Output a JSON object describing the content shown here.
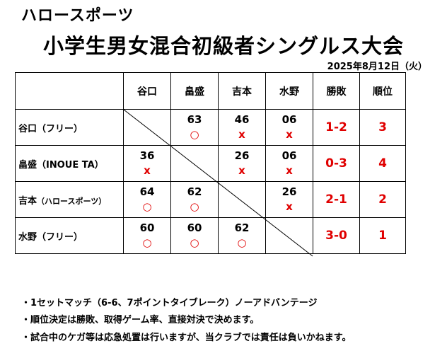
{
  "header": {
    "org": "ハロースポーツ",
    "title": "小学生男女混合初級者シングルス大会",
    "date": "2025年8月12日（火）"
  },
  "table": {
    "columns": [
      "谷口",
      "畠盛",
      "吉本",
      "水野",
      "勝敗",
      "順位"
    ],
    "rows": [
      {
        "name": "谷口（フリー）",
        "name_small": "",
        "scores": [
          null,
          {
            "val": "63",
            "mark": "○"
          },
          {
            "val": "46",
            "mark": "x"
          },
          {
            "val": "06",
            "mark": "x"
          }
        ],
        "record": "1-2",
        "rank": "3"
      },
      {
        "name": "畠盛（INOUE TA）",
        "name_small": "",
        "scores": [
          {
            "val": "36",
            "mark": "x"
          },
          null,
          {
            "val": "26",
            "mark": "x"
          },
          {
            "val": "06",
            "mark": "x"
          }
        ],
        "record": "0-3",
        "rank": "4"
      },
      {
        "name": "吉本",
        "name_small": "（ハロースポーツ）",
        "scores": [
          {
            "val": "64",
            "mark": "○"
          },
          {
            "val": "62",
            "mark": "○"
          },
          null,
          {
            "val": "26",
            "mark": "x"
          }
        ],
        "record": "2-1",
        "rank": "2"
      },
      {
        "name": "水野（フリー）",
        "name_small": "",
        "scores": [
          {
            "val": "60",
            "mark": "○"
          },
          {
            "val": "60",
            "mark": "○"
          },
          {
            "val": "62",
            "mark": "○"
          },
          null
        ],
        "record": "3-0",
        "rank": "1"
      }
    ]
  },
  "notes": [
    "・1セットマッチ（6-6、7ポイントタイブレーク）ノーアドバンテージ",
    "・順位決定は勝敗、取得ゲーム率、直接対決で決めます。",
    "・試合中のケガ等は応急処置は行いますが、当クラブでは責任は負いかねます。"
  ]
}
